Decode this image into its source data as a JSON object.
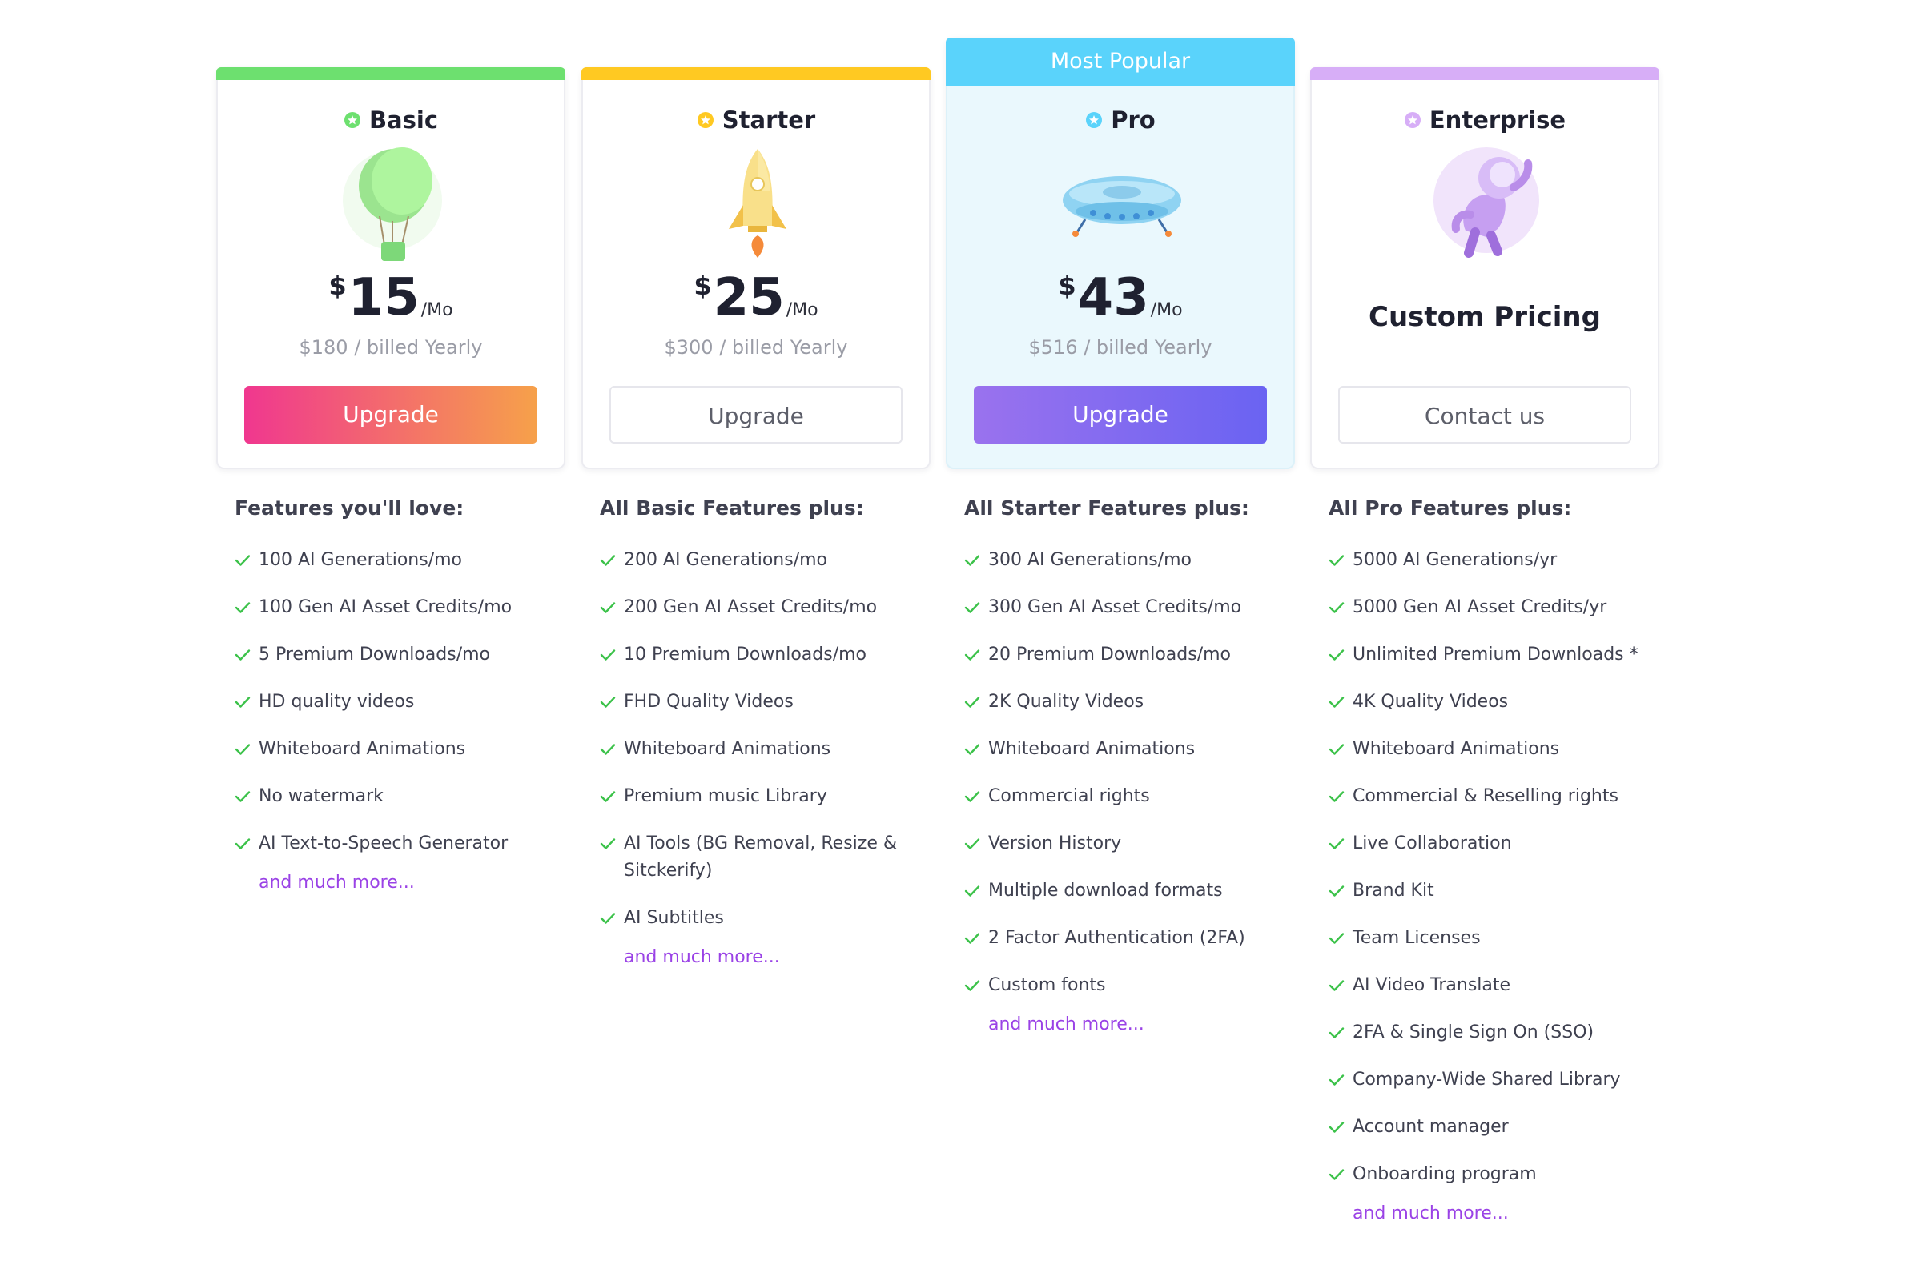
{
  "colors": {
    "basic_accent": "#6de06f",
    "starter_accent": "#ffc922",
    "pro_accent": "#5ad3fb",
    "enterprise_accent": "#d7aef7",
    "check": "#3cc24a",
    "link": "#9a42e6"
  },
  "plans": [
    {
      "name": "Basic",
      "icon": "hot-air-balloon-icon",
      "currency": "$",
      "price": "15",
      "period": "/Mo",
      "billed": "$180 / billed Yearly",
      "button": "Upgrade",
      "features_title": "Features you'll love:",
      "features": [
        "100 AI Generations/mo",
        "100 Gen AI Asset Credits/mo",
        "5 Premium Downloads/mo",
        "HD quality videos",
        "Whiteboard Animations",
        "No watermark",
        "AI Text-to-Speech Generator"
      ],
      "more": "and much more..."
    },
    {
      "name": "Starter",
      "icon": "rocket-icon",
      "currency": "$",
      "price": "25",
      "period": "/Mo",
      "billed": "$300 / billed Yearly",
      "button": "Upgrade",
      "features_title": "All Basic Features plus:",
      "features": [
        "200 AI Generations/mo",
        "200 Gen AI Asset Credits/mo",
        "10 Premium Downloads/mo",
        "FHD Quality Videos",
        "Whiteboard Animations",
        "Premium music Library",
        "AI Tools (BG Removal, Resize & Sitckerify)",
        "AI Subtitles"
      ],
      "more": "and much more..."
    },
    {
      "name": "Pro",
      "badge": "Most Popular",
      "icon": "ufo-icon",
      "currency": "$",
      "price": "43",
      "period": "/Mo",
      "billed": "$516 / billed Yearly",
      "button": "Upgrade",
      "features_title": "All Starter Features plus:",
      "features": [
        "300 AI Generations/mo",
        "300 Gen AI Asset Credits/mo",
        "20 Premium Downloads/mo",
        "2K Quality Videos",
        "Whiteboard Animations",
        "Commercial rights",
        "Version History",
        "Multiple download formats",
        "2 Factor Authentication (2FA)",
        "Custom fonts"
      ],
      "more": "and much more..."
    },
    {
      "name": "Enterprise",
      "icon": "astronaut-icon",
      "custom_pricing": "Custom Pricing",
      "button": "Contact us",
      "features_title": "All Pro Features plus:",
      "features": [
        "5000 AI Generations/yr",
        "5000 Gen AI Asset Credits/yr",
        "Unlimited Premium Downloads *",
        "4K Quality Videos",
        "Whiteboard Animations",
        "Commercial & Reselling rights",
        "Live Collaboration",
        "Brand Kit",
        "Team Licenses",
        "AI Video Translate",
        "2FA & Single Sign On (SSO)",
        "Company-Wide Shared Library",
        "Account manager",
        "Onboarding program"
      ],
      "more": "and much more..."
    }
  ]
}
